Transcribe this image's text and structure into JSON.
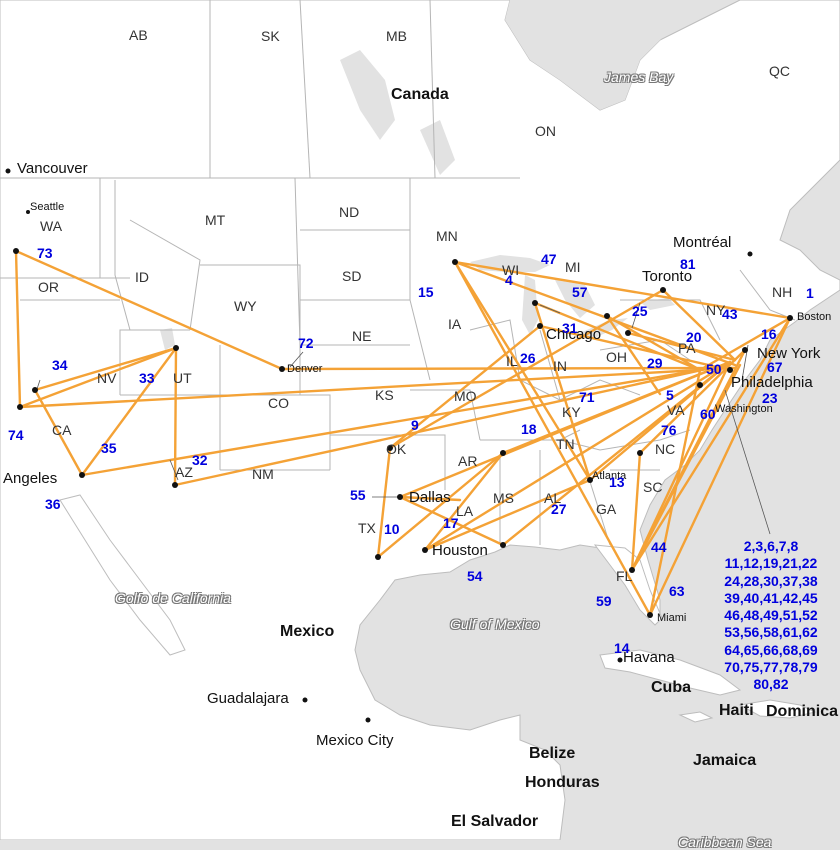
{
  "map": {
    "states": [
      "AB",
      "SK",
      "MB",
      "QC",
      "ON",
      "WA",
      "MT",
      "ND",
      "MN",
      "ID",
      "OR",
      "WY",
      "SD",
      "NE",
      "IA",
      "WI",
      "MI",
      "NV",
      "UT",
      "CO",
      "KS",
      "MO",
      "IL",
      "IN",
      "OH",
      "KY",
      "CA",
      "AZ",
      "NM",
      "OK",
      "AR",
      "TN",
      "TX",
      "LA",
      "MS",
      "AL",
      "GA",
      "SC",
      "NC",
      "VA",
      "FL",
      "NY",
      "PA",
      "NH"
    ],
    "countries": [
      "Canada",
      "Mexico",
      "Cuba",
      "Haiti",
      "Dominica",
      "Jamaica",
      "Belize",
      "Honduras",
      "El Salvador"
    ],
    "cities": [
      "Vancouver",
      "Seattle",
      "Denver",
      "Chicago",
      "Toronto",
      "Montréal",
      "Boston",
      "New York",
      "Philadelphia",
      "Washington",
      "Atlanta",
      "Dallas",
      "Houston",
      "Miami",
      "Havana",
      "Angeles",
      "Guadalajara",
      "Mexico City"
    ],
    "water": [
      "James Bay",
      "Golfo de California",
      "Gulf of Mexico",
      "Caribbean Sea"
    ],
    "route_labels": [
      "1",
      "4",
      "5",
      "9",
      "10",
      "13",
      "14",
      "15",
      "16",
      "17",
      "18",
      "20",
      "23",
      "25",
      "26",
      "27",
      "29",
      "31",
      "32",
      "33",
      "34",
      "35",
      "36",
      "43",
      "44",
      "47",
      "50",
      "54",
      "55",
      "57",
      "59",
      "60",
      "63",
      "67",
      "71",
      "72",
      "73",
      "74",
      "76",
      "81"
    ],
    "unplaced_routes": [
      "2,3,6,7,8",
      "11,12,19,21,22",
      "24,28,30,37,38",
      "39,40,41,42,45",
      "46,48,49,51,52",
      "53,56,58,61,62",
      "64,65,66,68,69",
      "70,75,77,78,79",
      "80,82"
    ],
    "colors": {
      "route": "#f4a236",
      "label": "#0000dd",
      "land": "#ffffff",
      "water": "#e2e2e2"
    }
  }
}
